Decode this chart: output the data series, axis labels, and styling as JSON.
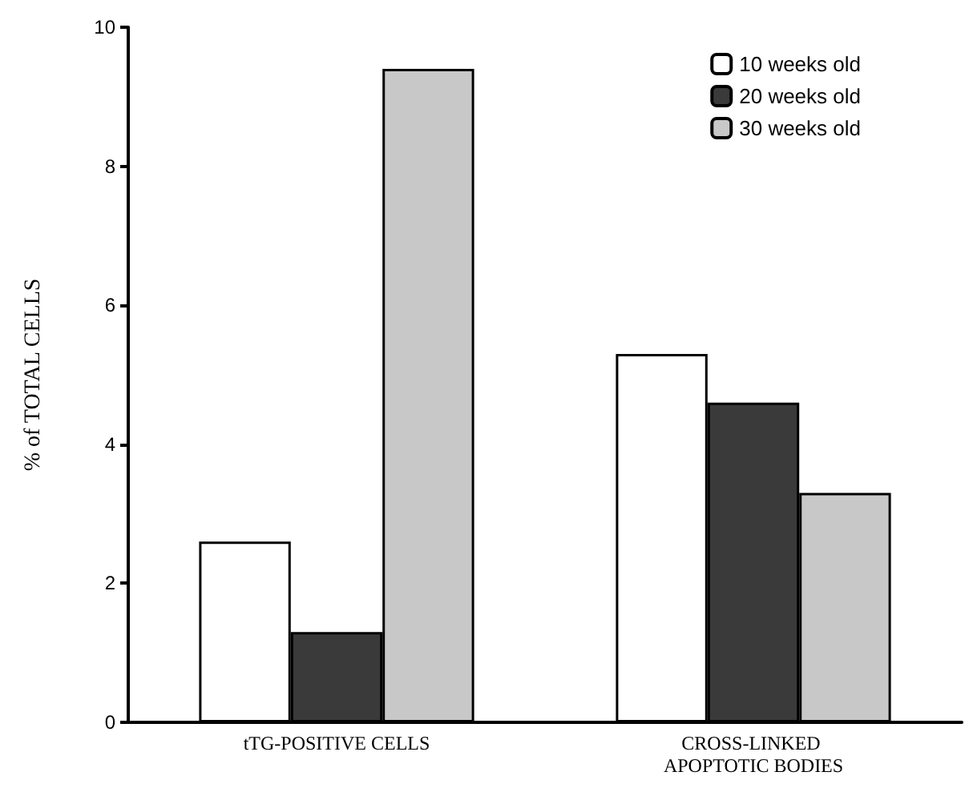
{
  "chart_data": {
    "type": "bar",
    "ylabel": "% of TOTAL CELLS",
    "categories": [
      "tTG-POSITIVE CELLS",
      "CROSS-LINKED APOPTOTIC BODIES"
    ],
    "series": [
      {
        "name": "10 weeks old",
        "color": "#ffffff",
        "values": [
          2.6,
          5.3
        ]
      },
      {
        "name": "20 weeks old",
        "color": "#3a3a3a",
        "values": [
          1.3,
          4.6
        ]
      },
      {
        "name": "30 weeks old",
        "color": "#c8c8c8",
        "values": [
          9.4,
          3.3
        ]
      }
    ],
    "ylim": [
      0,
      10
    ],
    "yticks": [
      0,
      2,
      4,
      6,
      8,
      10
    ],
    "grid": false,
    "legend": "top right"
  }
}
